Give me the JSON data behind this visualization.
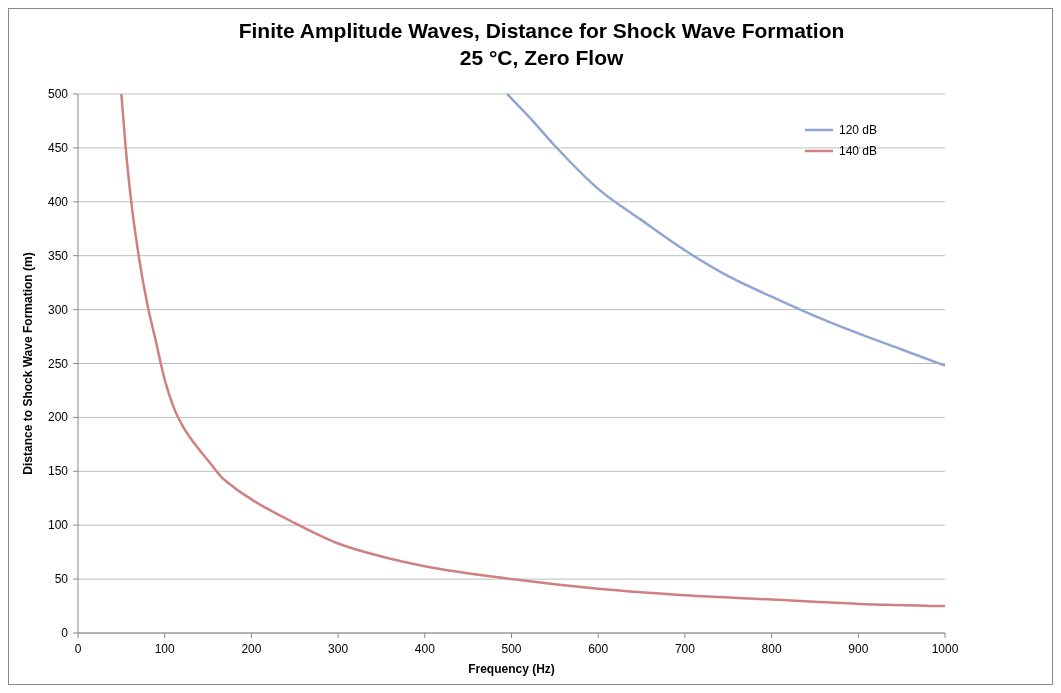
{
  "chart_data": {
    "type": "line",
    "title": "Finite Amplitude Waves, Distance for Shock Wave Formation\n25 °C,  Zero Flow",
    "xlabel": "Frequency (Hz)",
    "ylabel": "Distance to Shock Wave Formation (m)",
    "xlim": [
      0,
      1000
    ],
    "xticks": [
      0,
      100,
      200,
      300,
      400,
      500,
      600,
      700,
      800,
      900,
      1000
    ],
    "ylim": [
      0,
      500
    ],
    "yticks": [
      0,
      50,
      100,
      150,
      200,
      250,
      300,
      350,
      400,
      450,
      500
    ],
    "grid": "y",
    "legend": "top right",
    "series": [
      {
        "name": "120 dB",
        "color": "#8fa6d2",
        "x": [
          495,
          520,
          550,
          600,
          650,
          700,
          750,
          800,
          850,
          900,
          950,
          1000
        ],
        "values": [
          500,
          479,
          452,
          412,
          383,
          355,
          331,
          312,
          294,
          278,
          263,
          248
        ]
      },
      {
        "name": "140 dB",
        "color": "#d08080",
        "x": [
          50,
          55,
          60,
          70,
          80,
          90,
          100,
          110,
          120,
          135,
          150,
          165,
          180,
          200,
          250,
          300,
          350,
          400,
          500,
          600,
          700,
          800,
          900,
          1000
        ],
        "values": [
          500,
          450,
          410,
          350,
          305,
          270,
          235,
          210,
          193,
          175,
          160,
          145,
          135,
          124,
          102,
          83,
          71,
          62,
          50,
          41,
          35,
          31,
          27,
          25
        ]
      }
    ]
  }
}
